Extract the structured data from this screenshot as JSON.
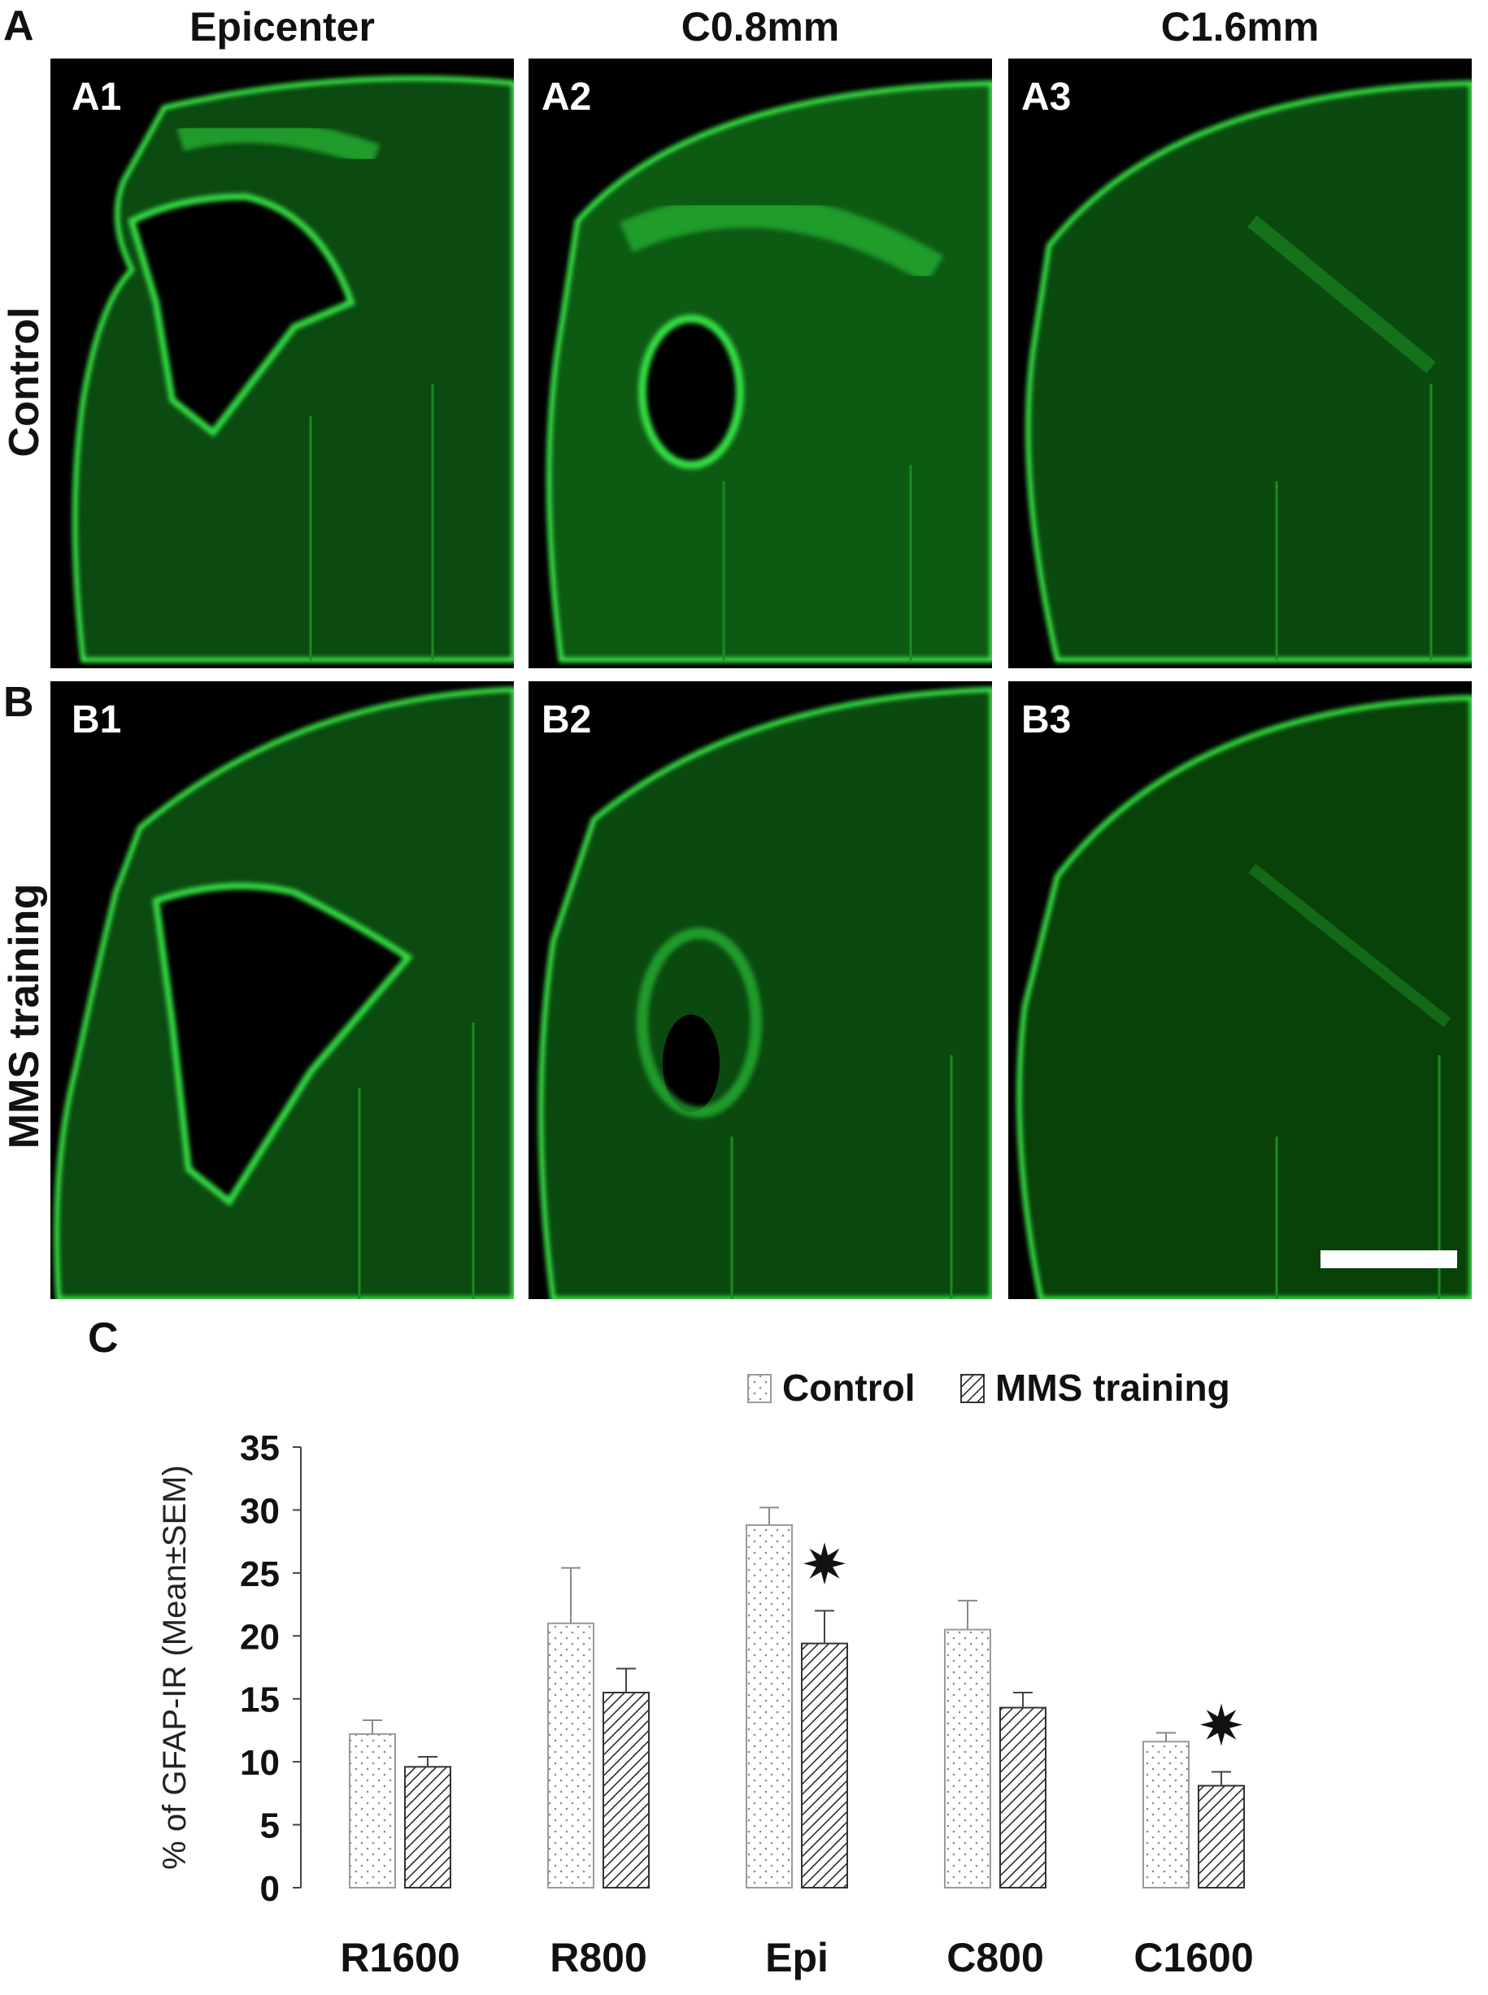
{
  "figure": {
    "panel_a_letter": "A",
    "panel_b_letter": "B",
    "panel_c_letter": "C",
    "column_titles": [
      "Epicenter",
      "C0.8mm",
      "C1.6mm"
    ],
    "row_labels": [
      "Control",
      "MMS training"
    ],
    "panels": {
      "A1": "A1",
      "A2": "A2",
      "A3": "A3",
      "B1": "B1",
      "B2": "B2",
      "B3": "B3"
    },
    "stain_color": "#22dd33"
  },
  "chart_data": {
    "type": "bar",
    "categories": [
      "R1600",
      "R800",
      "Epi",
      "C800",
      "C1600"
    ],
    "series": [
      {
        "name": "Control",
        "values": [
          12.2,
          21.0,
          28.8,
          20.5,
          11.6
        ],
        "errors": [
          1.1,
          4.4,
          1.4,
          2.3,
          0.7
        ],
        "pattern": "dotted"
      },
      {
        "name": "MMS training",
        "values": [
          9.6,
          15.5,
          19.4,
          14.3,
          8.1
        ],
        "errors": [
          0.8,
          1.9,
          2.6,
          1.2,
          1.1
        ],
        "pattern": "hatched"
      }
    ],
    "significance": [
      {
        "category": "Epi",
        "series": "MMS training",
        "marker": "star"
      },
      {
        "category": "C1600",
        "series": "MMS training",
        "marker": "star"
      }
    ],
    "ylabel": "% of GFAP-IR (Mean±SEM)",
    "yticks": [
      0,
      5,
      10,
      15,
      20,
      25,
      30,
      35
    ],
    "ylim": [
      0,
      35
    ],
    "legend_position": "top-right",
    "grid": false
  }
}
